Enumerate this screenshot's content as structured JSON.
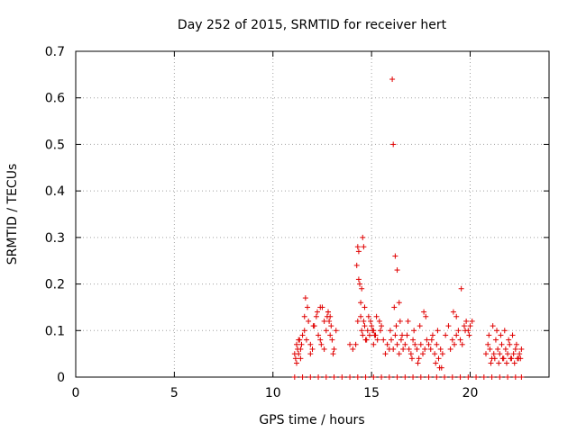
{
  "chart_data": {
    "type": "scatter",
    "title": "Day 252 of 2015, SRMTID for receiver hert",
    "xlabel": "GPS time / hours",
    "ylabel": "SRMTID / TECUs",
    "xlim": [
      0,
      24
    ],
    "ylim": [
      0,
      0.7
    ],
    "xticks": [
      0,
      5,
      10,
      15,
      20
    ],
    "xtick_labels": [
      "0",
      "5",
      "10",
      "15",
      "20"
    ],
    "yticks": [
      0,
      0.1,
      0.2,
      0.3,
      0.4,
      0.5,
      0.6,
      0.7
    ],
    "ytick_labels": [
      "0",
      "0.1",
      "0.2",
      "0.3",
      "0.4",
      "0.5",
      "0.6",
      "0.7"
    ],
    "grid": true,
    "marker": "+",
    "color": "#e00000",
    "series": [
      {
        "name": "SRMTID",
        "x": [
          11.1,
          11.15,
          11.2,
          11.25,
          11.3,
          11.35,
          11.4,
          11.45,
          11.5,
          11.6,
          11.7,
          11.8,
          11.9,
          12.0,
          12.1,
          12.2,
          12.3,
          12.4,
          12.5,
          12.6,
          12.7,
          12.8,
          12.9,
          13.0,
          13.1,
          13.2,
          11.2,
          11.3,
          11.4,
          11.6,
          11.75,
          11.9,
          12.05,
          12.25,
          12.45,
          12.6,
          12.75,
          12.85,
          12.95,
          13.05,
          11.65,
          12.4,
          12.8,
          12.9,
          14.2,
          14.3,
          14.35,
          14.4,
          14.45,
          14.5,
          14.55,
          14.6,
          14.65,
          14.7,
          14.8,
          14.9,
          15.0,
          15.1,
          15.2,
          15.3,
          15.4,
          15.5,
          14.25,
          14.3,
          14.35,
          14.45,
          14.5,
          14.55,
          14.6,
          14.65,
          15.1,
          15.25,
          13.9,
          14.05,
          14.75,
          14.85,
          14.95,
          15.05,
          15.15,
          15.45,
          15.6,
          16.05,
          16.1,
          16.2,
          16.3,
          16.4,
          15.7,
          15.8,
          15.9,
          16.0,
          16.1,
          16.2,
          16.3,
          16.4,
          16.5,
          16.6,
          16.7,
          16.8,
          16.9,
          17.0,
          17.1,
          17.2,
          17.3,
          17.4,
          17.5,
          17.6,
          17.7,
          17.8,
          17.9,
          18.0,
          18.1,
          18.2,
          18.3,
          18.4,
          18.5,
          18.6,
          15.95,
          16.25,
          16.55,
          16.85,
          17.15,
          17.45,
          17.75,
          18.05,
          18.35,
          18.55,
          16.15,
          16.45,
          17.05,
          17.35,
          17.65,
          18.25,
          18.45,
          18.75,
          18.9,
          19.0,
          19.1,
          19.2,
          19.3,
          19.4,
          19.5,
          19.6,
          19.7,
          19.8,
          19.9,
          20.0,
          20.1,
          19.15,
          19.3,
          19.55,
          19.75,
          19.95,
          20.8,
          20.9,
          21.0,
          21.1,
          21.2,
          21.3,
          21.4,
          21.5,
          21.6,
          21.7,
          21.8,
          21.9,
          22.0,
          22.1,
          22.2,
          22.3,
          22.4,
          22.5,
          22.6,
          20.95,
          21.15,
          21.35,
          21.55,
          21.75,
          21.95,
          22.15,
          22.35,
          22.55,
          21.05,
          21.25,
          21.45,
          21.65,
          21.85,
          22.05,
          22.25,
          22.45,
          11.1,
          11.5,
          11.9,
          12.3,
          12.7,
          13.1,
          13.5,
          13.9,
          14.3,
          14.7,
          15.1,
          15.5,
          15.9,
          16.3,
          16.7,
          17.1,
          17.5,
          17.9,
          18.3,
          18.7,
          19.1,
          19.5,
          19.9,
          20.3,
          20.7,
          21.1,
          21.5,
          21.9,
          22.3,
          22.6
        ],
        "y": [
          0.05,
          0.04,
          0.07,
          0.06,
          0.05,
          0.08,
          0.06,
          0.07,
          0.09,
          0.1,
          0.08,
          0.12,
          0.07,
          0.06,
          0.11,
          0.13,
          0.09,
          0.08,
          0.15,
          0.12,
          0.1,
          0.14,
          0.09,
          0.08,
          0.06,
          0.1,
          0.03,
          0.08,
          0.04,
          0.13,
          0.15,
          0.05,
          0.11,
          0.14,
          0.07,
          0.06,
          0.13,
          0.12,
          0.11,
          0.05,
          0.17,
          0.15,
          0.14,
          0.13,
          0.07,
          0.12,
          0.27,
          0.2,
          0.13,
          0.1,
          0.09,
          0.12,
          0.11,
          0.08,
          0.1,
          0.09,
          0.11,
          0.1,
          0.09,
          0.08,
          0.12,
          0.11,
          0.24,
          0.28,
          0.21,
          0.16,
          0.19,
          0.3,
          0.28,
          0.15,
          0.07,
          0.13,
          0.07,
          0.06,
          0.08,
          0.13,
          0.12,
          0.1,
          0.09,
          0.1,
          0.08,
          0.64,
          0.5,
          0.26,
          0.23,
          0.16,
          0.05,
          0.07,
          0.06,
          0.08,
          0.06,
          0.09,
          0.07,
          0.05,
          0.08,
          0.06,
          0.07,
          0.09,
          0.06,
          0.05,
          0.08,
          0.07,
          0.06,
          0.04,
          0.07,
          0.05,
          0.06,
          0.08,
          0.07,
          0.06,
          0.09,
          0.05,
          0.07,
          0.04,
          0.06,
          0.05,
          0.1,
          0.11,
          0.09,
          0.12,
          0.1,
          0.11,
          0.13,
          0.08,
          0.1,
          0.02,
          0.15,
          0.12,
          0.04,
          0.03,
          0.14,
          0.03,
          0.02,
          0.09,
          0.11,
          0.06,
          0.08,
          0.07,
          0.09,
          0.1,
          0.08,
          0.07,
          0.11,
          0.12,
          0.1,
          0.11,
          0.12,
          0.14,
          0.13,
          0.19,
          0.1,
          0.09,
          0.05,
          0.07,
          0.06,
          0.04,
          0.05,
          0.08,
          0.06,
          0.05,
          0.07,
          0.04,
          0.06,
          0.05,
          0.07,
          0.04,
          0.05,
          0.06,
          0.04,
          0.05,
          0.06,
          0.09,
          0.11,
          0.1,
          0.09,
          0.1,
          0.08,
          0.09,
          0.07,
          0.04,
          0.03,
          0.04,
          0.03,
          0.04,
          0.03,
          0.04,
          0.03,
          0.04,
          0,
          0,
          0,
          0,
          0,
          0,
          0,
          0,
          0,
          0,
          0,
          0,
          0,
          0,
          0,
          0,
          0,
          0,
          0,
          0,
          0,
          0,
          0,
          0,
          0,
          0,
          0,
          0,
          0,
          0
        ]
      }
    ]
  }
}
